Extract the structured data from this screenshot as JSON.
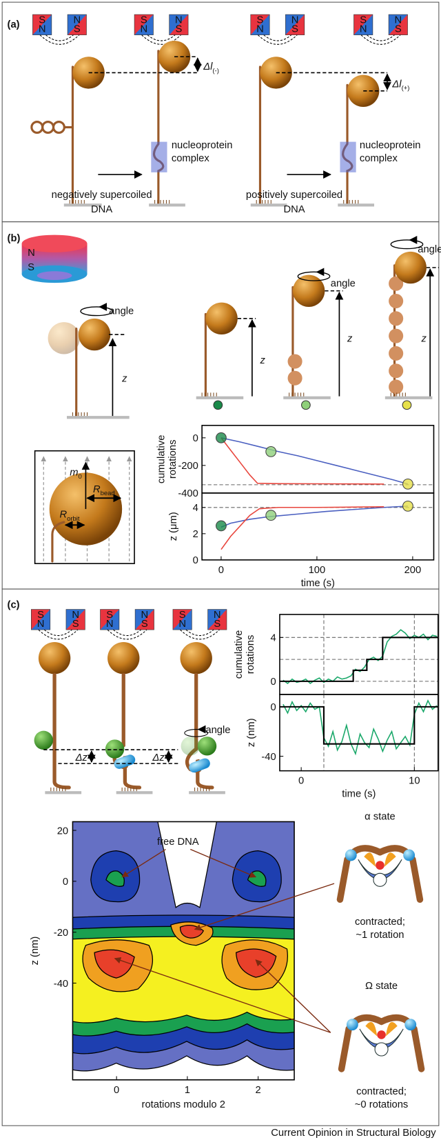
{
  "panel_a": {
    "label": "(a)",
    "magnet": {
      "south": "S",
      "north": "N"
    },
    "delta_minus": {
      "symbol": "Δl",
      "subscript": "(-)"
    },
    "delta_plus": {
      "symbol": "Δl",
      "subscript": "(+)"
    },
    "complex_label": [
      "nucleoprotein",
      "complex"
    ],
    "negative_caption": [
      "negatively supercoiled",
      "DNA"
    ],
    "positive_caption": [
      "positively supercoiled",
      "DNA"
    ]
  },
  "panel_b": {
    "label": "(b)",
    "magnet": {
      "north": "N",
      "south": "S"
    },
    "angle": "angle",
    "z": "z",
    "inset": {
      "moment": {
        "symbol": "m",
        "subscript": "0"
      },
      "bead_radius": {
        "symbol": "R",
        "subscript": "bead"
      },
      "orbit_radius": {
        "symbol": "R",
        "subscript": "orbit"
      }
    },
    "chart": {
      "type": "line",
      "xlim": [
        -20,
        222
      ],
      "xticks": [
        0,
        100,
        200
      ],
      "x_label": "time (s)",
      "subplots": [
        {
          "y_label": [
            "cumulative",
            "rotations"
          ],
          "ylim": [
            -400,
            90
          ],
          "yticks": [
            0,
            -200,
            -400
          ],
          "reference_lines": [
            -340
          ],
          "series": [
            {
              "color": "#4a5fc0",
              "x": [
                0,
                20,
                40,
                60,
                80,
                100,
                120,
                140,
                160,
                180,
                195
              ],
              "values": [
                0,
                -30,
                -65,
                -100,
                -130,
                -165,
                -200,
                -235,
                -270,
                -305,
                -335
              ]
            },
            {
              "color": "#e8453c",
              "x": [
                0,
                10,
                20,
                30,
                38,
                60,
                100,
                140,
                170
              ],
              "values": [
                0,
                -90,
                -180,
                -270,
                -330,
                -332,
                -333,
                -334,
                -335
              ]
            }
          ],
          "markers": {
            "x": [
              0,
              52,
              195
            ],
            "values": [
              0,
              -100,
              -335
            ],
            "colors": [
              "#1a8a4a",
              "#8fd07a",
              "#e6e04a"
            ]
          }
        },
        {
          "y_label": "z (μm)",
          "ylim": [
            0,
            5.1
          ],
          "yticks": [
            0,
            2,
            4
          ],
          "reference_lines": [
            4
          ],
          "series": [
            {
              "color": "#4a5fc0",
              "x": [
                0,
                10,
                30,
                50,
                80,
                110,
                140,
                170,
                195
              ],
              "values": [
                2.5,
                2.8,
                3.1,
                3.3,
                3.5,
                3.7,
                3.85,
                4.0,
                4.1
              ]
            },
            {
              "color": "#e8453c",
              "x": [
                0,
                5,
                10,
                20,
                30,
                40,
                60,
                100,
                170
              ],
              "values": [
                0.8,
                1.3,
                1.8,
                2.6,
                3.4,
                3.9,
                4.0,
                4.0,
                4.05
              ]
            }
          ],
          "markers": {
            "x": [
              0,
              52,
              195
            ],
            "values": [
              2.6,
              3.4,
              4.1
            ],
            "colors": [
              "#1a8a4a",
              "#8fd07a",
              "#e6e04a"
            ]
          }
        }
      ]
    }
  },
  "panel_c": {
    "label": "(c)",
    "delta_z": "Δz",
    "chart": {
      "type": "line",
      "xlim": [
        -1.9,
        12.1
      ],
      "xticks": [
        0,
        10
      ],
      "x_label": "time (s)",
      "event_times": [
        2,
        10
      ],
      "subplots": [
        {
          "y_label": [
            "cumulative",
            "rotations"
          ],
          "ylim": [
            -1.2,
            6.1
          ],
          "yticks": [
            0,
            4
          ],
          "reference_lines": [
            0,
            2,
            4
          ],
          "series": [
            {
              "color": "#1aa86a",
              "x": [
                -1.6,
                -1.2,
                -0.8,
                -0.4,
                0,
                0.4,
                0.8,
                1.2,
                1.6,
                2,
                2.4,
                2.8,
                3.2,
                3.6,
                4,
                4.4,
                4.8,
                5.2,
                5.6,
                6,
                6.4,
                6.8,
                7.2,
                7.6,
                8,
                8.4,
                8.8,
                9.2,
                9.6,
                10,
                10.4,
                10.8,
                11.2,
                11.6,
                12
              ],
              "values": [
                0.1,
                -0.2,
                0.2,
                -0.1,
                0,
                0.2,
                -0.2,
                0.1,
                0.3,
                -0.1,
                0.2,
                0,
                0.4,
                0.2,
                0.3,
                0.5,
                1.1,
                0.9,
                1.3,
                2.0,
                2.2,
                1.9,
                2.3,
                3.6,
                4.1,
                4.3,
                4.7,
                4.4,
                3.9,
                4.2,
                4.0,
                4.3,
                3.8,
                4.2,
                4.1
              ]
            },
            {
              "color": "#000000",
              "x": [
                -1.9,
                4.6,
                4.6,
                5.8,
                5.8,
                7.2,
                7.2,
                12.1
              ],
              "values": [
                0,
                0,
                1,
                1,
                2,
                2,
                4,
                4
              ]
            }
          ]
        },
        {
          "y_label": "z (nm)",
          "ylim": [
            -51.8,
            10
          ],
          "yticks": [
            0,
            -40
          ],
          "reference_lines": [],
          "series": [
            {
              "color": "#1aa86a",
              "x": [
                -1.6,
                -1.2,
                -0.8,
                -0.4,
                0,
                0.4,
                0.8,
                1.2,
                1.6,
                2,
                2.4,
                2.8,
                3.2,
                3.6,
                4,
                4.4,
                4.8,
                5.2,
                5.6,
                6,
                6.4,
                6.8,
                7.2,
                7.6,
                8,
                8.4,
                8.8,
                9.2,
                9.6,
                10,
                10.4,
                10.8,
                11.2,
                11.6,
                12
              ],
              "values": [
                2,
                -5,
                4,
                -3,
                1,
                -4,
                3,
                -2,
                0,
                -25,
                -32,
                -20,
                -35,
                -28,
                -15,
                -30,
                -38,
                -22,
                -29,
                -33,
                -18,
                -26,
                -36,
                -27,
                -20,
                -34,
                -29,
                -24,
                -31,
                -6,
                3,
                -4,
                5,
                -2,
                1
              ]
            },
            {
              "color": "#000000",
              "x": [
                -1.9,
                2,
                2,
                10,
                10,
                12.1
              ],
              "values": [
                0,
                0,
                -30,
                -30,
                0,
                0
              ]
            }
          ]
        }
      ]
    },
    "contour": {
      "type": "contour",
      "xlim": [
        -0.62,
        2.51
      ],
      "ylim": [
        -78,
        23.4
      ],
      "xticks": [
        0,
        1,
        2
      ],
      "yticks": [
        20,
        0,
        -20,
        -40
      ],
      "x_label": "rotations modulo 2",
      "y_label": "z (nm)",
      "annotation": "free DNA"
    },
    "alpha": {
      "title": "α state",
      "caption": [
        "contracted;",
        "~1 rotation"
      ]
    },
    "omega": {
      "title": "Ω state",
      "caption": [
        "contracted;",
        "~0 rotations"
      ]
    }
  },
  "footer": "Current Opinion in Structural Biology"
}
